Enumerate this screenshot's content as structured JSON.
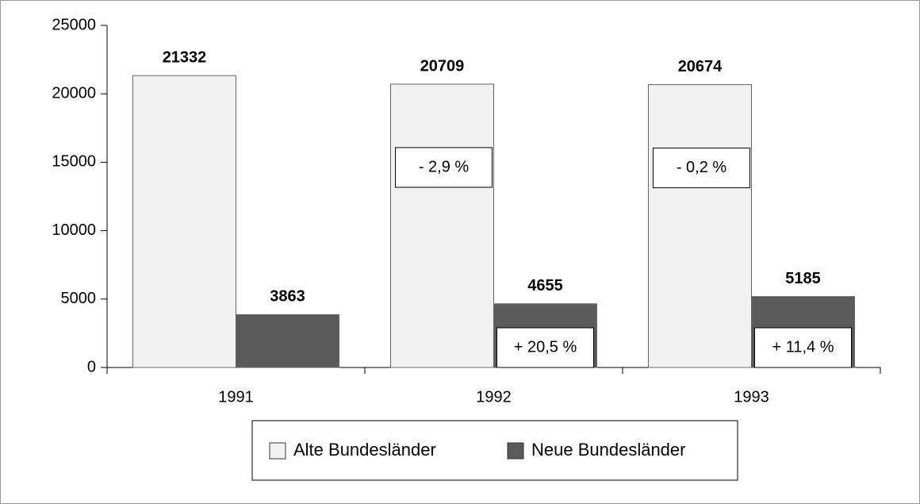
{
  "chart_data": {
    "type": "bar",
    "categories": [
      "1991",
      "1992",
      "1993"
    ],
    "series": [
      {
        "name": "Alte Bundesländer",
        "color": "#f1f1f1",
        "values": [
          21332,
          20709,
          20674
        ]
      },
      {
        "name": "Neue Bundesländer",
        "color": "#5a5a5a",
        "values": [
          3863,
          4655,
          5185
        ]
      }
    ],
    "annotations": [
      {
        "category": "1992",
        "series": "Alte Bundesländer",
        "text": "- 2,9 %"
      },
      {
        "category": "1992",
        "series": "Neue Bundesländer",
        "text": "+ 20,5 %"
      },
      {
        "category": "1993",
        "series": "Alte Bundesländer",
        "text": "- 0,2 %"
      },
      {
        "category": "1993",
        "series": "Neue Bundesländer",
        "text": "+ 11,4 %"
      }
    ],
    "ylim": [
      0,
      25000
    ],
    "yticks": [
      0,
      5000,
      10000,
      15000,
      20000,
      25000
    ],
    "grid": false,
    "legend": "bottom"
  }
}
